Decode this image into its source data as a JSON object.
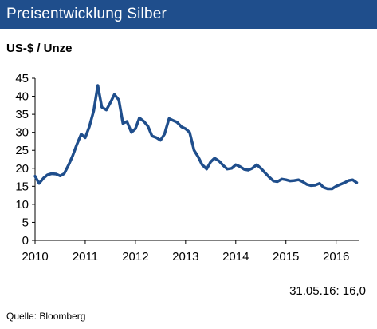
{
  "header": {
    "title": "Preisentwicklung Silber"
  },
  "unit_label": "US-$ / Unze",
  "footer": {
    "date_value": "31.05.16: 16,0",
    "source": "Quelle:  Bloomberg"
  },
  "colors": {
    "header_bg": "#1f4e8c",
    "line": "#1f4e8c",
    "axis": "#000000"
  },
  "chart_data": {
    "type": "line",
    "title": "Preisentwicklung Silber",
    "xlabel": "",
    "ylabel": "US-$ / Unze",
    "xlim": [
      2010.0,
      2016.45
    ],
    "ylim": [
      0,
      45
    ],
    "yticks": [
      0,
      5,
      10,
      15,
      20,
      25,
      30,
      35,
      40,
      45
    ],
    "ytick_labels": [
      "0",
      "5",
      "10",
      "15",
      "20",
      "25",
      "30",
      "35",
      "40",
      "45"
    ],
    "xticks": [
      2010,
      2011,
      2012,
      2013,
      2014,
      2015,
      2016
    ],
    "xtick_labels": [
      "2010",
      "2011",
      "2012",
      "2013",
      "2014",
      "2015",
      "2016"
    ],
    "grid": false,
    "legend": "none",
    "series": [
      {
        "x": [
          2010.0,
          2010.08,
          2010.17,
          2010.25,
          2010.33,
          2010.42,
          2010.5,
          2010.58,
          2010.67,
          2010.75,
          2010.83,
          2010.92,
          2011.0,
          2011.08,
          2011.17,
          2011.25,
          2011.33,
          2011.42,
          2011.5,
          2011.58,
          2011.67,
          2011.75,
          2011.83,
          2011.92,
          2012.0,
          2012.08,
          2012.17,
          2012.25,
          2012.33,
          2012.42,
          2012.5,
          2012.58,
          2012.67,
          2012.75,
          2012.83,
          2012.92,
          2013.0,
          2013.08,
          2013.17,
          2013.25,
          2013.33,
          2013.42,
          2013.5,
          2013.58,
          2013.67,
          2013.75,
          2013.83,
          2013.92,
          2014.0,
          2014.08,
          2014.17,
          2014.25,
          2014.33,
          2014.42,
          2014.5,
          2014.58,
          2014.67,
          2014.75,
          2014.83,
          2014.92,
          2015.0,
          2015.08,
          2015.17,
          2015.25,
          2015.33,
          2015.42,
          2015.5,
          2015.58,
          2015.67,
          2015.75,
          2015.83,
          2015.92,
          2016.0,
          2016.08,
          2016.17,
          2016.25,
          2016.33,
          2016.41
        ],
        "values": [
          17.8,
          15.8,
          17.3,
          18.2,
          18.5,
          18.4,
          17.9,
          18.5,
          21.0,
          23.5,
          26.5,
          29.5,
          28.5,
          31.5,
          36.0,
          43.0,
          37.0,
          36.2,
          38.2,
          40.5,
          39.0,
          32.5,
          33.0,
          30.0,
          31.0,
          34.0,
          33.0,
          31.7,
          29.0,
          28.5,
          27.8,
          29.5,
          33.8,
          33.3,
          32.8,
          31.5,
          31.0,
          30.0,
          25.0,
          23.2,
          21.0,
          19.8,
          21.8,
          22.8,
          22.0,
          20.8,
          19.8,
          20.0,
          21.0,
          20.5,
          19.7,
          19.5,
          20.0,
          21.0,
          20.0,
          18.8,
          17.5,
          16.5,
          16.3,
          17.0,
          16.8,
          16.5,
          16.6,
          16.8,
          16.3,
          15.5,
          15.2,
          15.3,
          15.8,
          14.7,
          14.3,
          14.3,
          15.0,
          15.5,
          16.0,
          16.6,
          16.8,
          16.0
        ]
      }
    ]
  }
}
